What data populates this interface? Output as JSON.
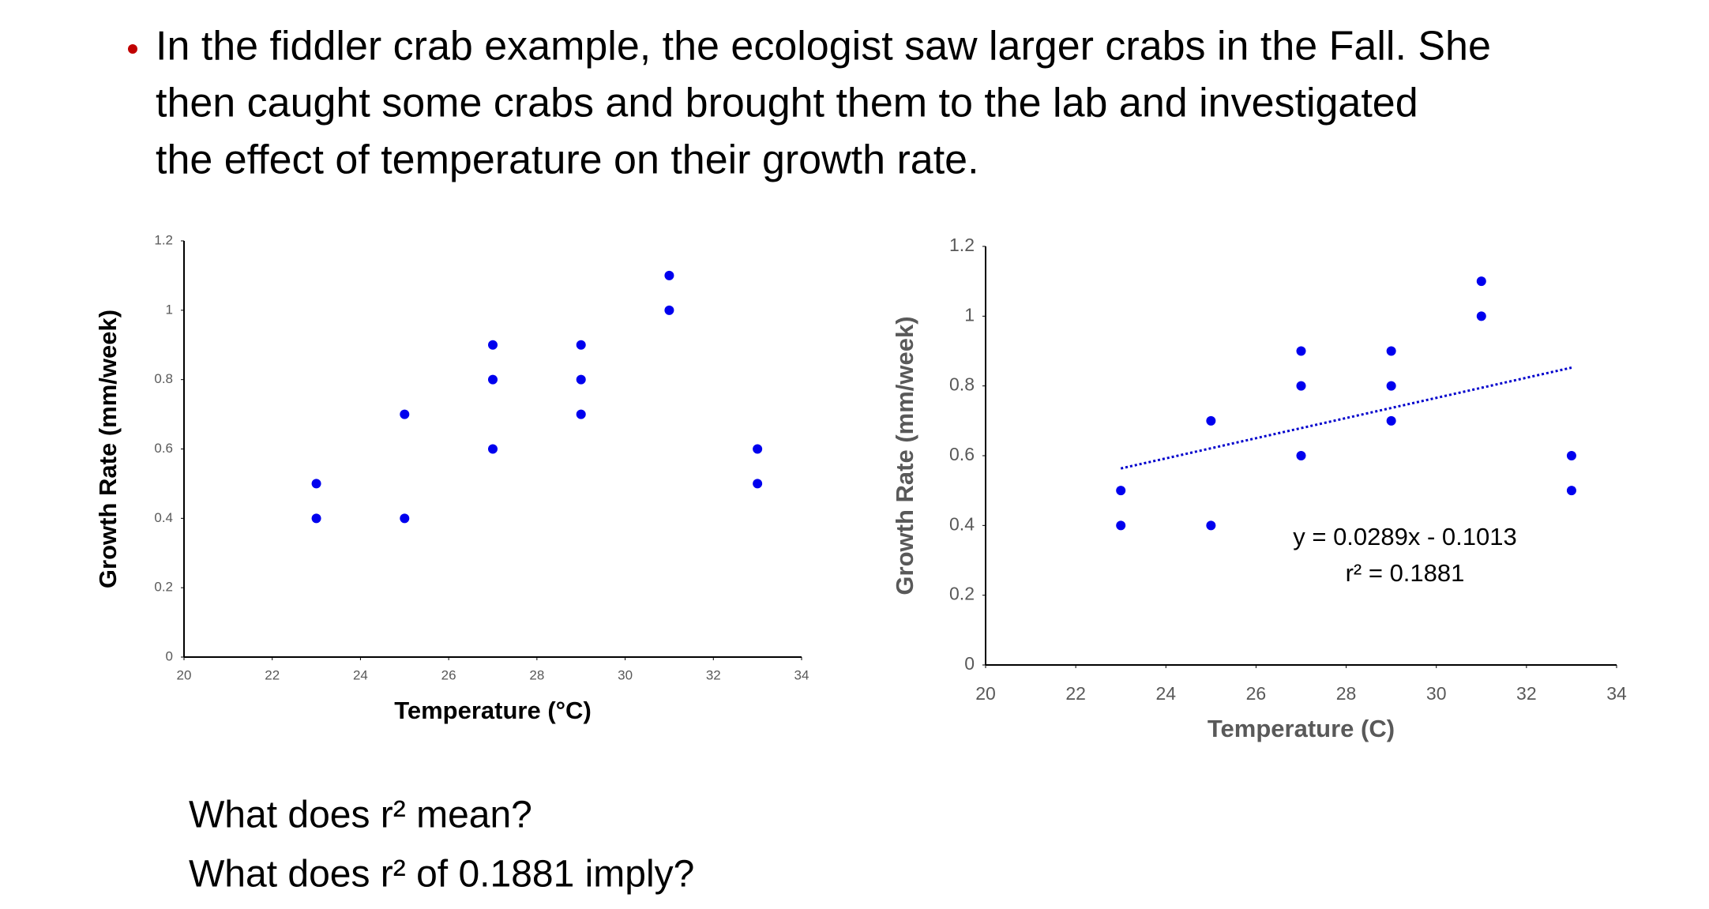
{
  "bullet_lines": [
    "In the fiddler crab example, the ecologist saw larger crabs in the Fall. She",
    "then caught some crabs and brought them to the lab and investigated",
    "the effect of temperature on their growth rate."
  ],
  "questions": [
    "What does r² mean?",
    "What does r² of 0.1881 imply?"
  ],
  "chart_data": [
    {
      "type": "scatter",
      "x_label": "Temperature (°C)",
      "y_label": "Growth Rate (mm/week)",
      "axis_title_color": "#000000",
      "color": "#0000ee",
      "x": [
        23,
        23,
        25,
        25,
        27,
        27,
        27,
        29,
        29,
        29,
        31,
        31,
        33,
        33
      ],
      "values": [
        0.4,
        0.5,
        0.4,
        0.7,
        0.6,
        0.8,
        0.9,
        0.7,
        0.8,
        0.9,
        1.0,
        1.1,
        0.5,
        0.6
      ],
      "xlim": [
        20,
        34
      ],
      "xticks": [
        20,
        22,
        24,
        26,
        28,
        30,
        32,
        34
      ],
      "ylim": [
        0,
        1.2
      ],
      "yticks": [
        0,
        0.2,
        0.4,
        0.6,
        0.8,
        1,
        1.2
      ]
    },
    {
      "type": "scatter",
      "x_label": "Temperature (C)",
      "y_label": "Growth Rate (mm/week)",
      "axis_title_color": "#595959",
      "color": "#0000ee",
      "x": [
        23,
        23,
        25,
        25,
        27,
        27,
        27,
        29,
        29,
        29,
        31,
        31,
        33,
        33
      ],
      "values": [
        0.4,
        0.5,
        0.4,
        0.7,
        0.6,
        0.8,
        0.9,
        0.7,
        0.8,
        0.9,
        1.0,
        1.1,
        0.5,
        0.6
      ],
      "xlim": [
        20,
        34
      ],
      "xticks": [
        20,
        22,
        24,
        26,
        28,
        30,
        32,
        34
      ],
      "ylim": [
        0,
        1.2
      ],
      "yticks": [
        0,
        0.2,
        0.4,
        0.6,
        0.8,
        1,
        1.2
      ],
      "trendline": {
        "slope": 0.0289,
        "intercept": -0.1013,
        "color": "#0000cc"
      },
      "annotations": [
        "y = 0.0289x - 0.1013",
        "r² = 0.1881"
      ]
    }
  ]
}
